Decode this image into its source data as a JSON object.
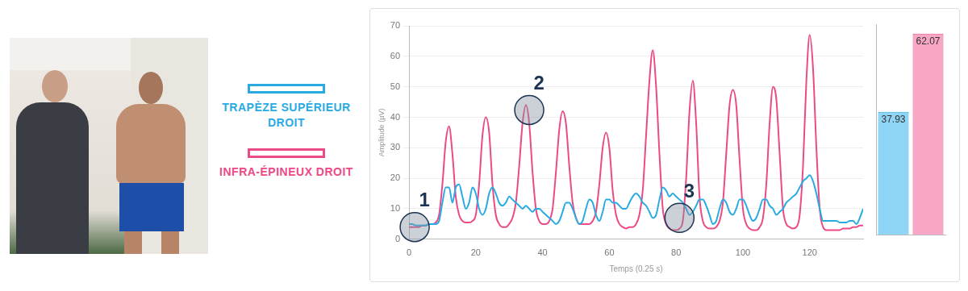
{
  "chart_data": [
    {
      "type": "line",
      "x_label": "Temps (0.25 s)",
      "y_label": "Amplitude (µV)",
      "legend": "left",
      "grid": true,
      "xlim": [
        0,
        136
      ],
      "xticks": [
        0,
        20,
        40,
        60,
        80,
        100,
        120
      ],
      "ylim": [
        0,
        70
      ],
      "yticks": [
        0,
        10,
        20,
        30,
        40,
        50,
        60,
        70
      ],
      "x": [
        0,
        1,
        2,
        3,
        4,
        5,
        6,
        7,
        8,
        9,
        10,
        11,
        12,
        13,
        14,
        15,
        16,
        17,
        18,
        19,
        20,
        21,
        22,
        23,
        24,
        25,
        26,
        27,
        28,
        29,
        30,
        31,
        32,
        33,
        34,
        35,
        36,
        37,
        38,
        39,
        40,
        41,
        42,
        43,
        44,
        45,
        46,
        47,
        48,
        49,
        50,
        51,
        52,
        53,
        54,
        55,
        56,
        57,
        58,
        59,
        60,
        61,
        62,
        63,
        64,
        65,
        66,
        67,
        68,
        69,
        70,
        71,
        72,
        73,
        74,
        75,
        76,
        77,
        78,
        79,
        80,
        81,
        82,
        83,
        84,
        85,
        86,
        87,
        88,
        89,
        90,
        91,
        92,
        93,
        94,
        95,
        96,
        97,
        98,
        99,
        100,
        101,
        102,
        103,
        104,
        105,
        106,
        107,
        108,
        109,
        110,
        111,
        112,
        113,
        114,
        115,
        116,
        117,
        118,
        119,
        120,
        121,
        122,
        123,
        124,
        125,
        126,
        127,
        128,
        129,
        130,
        131,
        132,
        133,
        134,
        135,
        136
      ],
      "series": [
        {
          "name": "TRAPÈZE SUPÉRIEUR DROIT",
          "color": "#29abe2",
          "values": [
            5,
            5,
            4.5,
            4.5,
            4.5,
            4.5,
            5,
            5,
            5,
            6,
            12,
            17,
            17,
            12,
            17,
            18,
            14,
            10,
            12,
            17,
            15,
            10,
            8,
            10,
            15,
            17,
            15,
            12,
            11,
            12,
            14,
            13,
            12,
            11,
            10,
            11,
            10,
            9,
            10,
            10,
            9,
            8,
            7,
            6,
            5,
            6,
            9,
            12,
            12,
            10,
            7,
            5,
            6,
            10,
            13,
            12,
            8,
            6,
            9,
            13,
            13,
            12,
            12,
            11,
            10,
            10,
            12,
            14,
            15,
            14,
            12,
            11,
            9,
            7,
            8,
            13,
            17,
            16,
            14,
            15,
            14,
            13,
            12,
            10,
            8,
            9,
            11,
            13,
            13,
            11,
            8,
            5,
            6,
            10,
            13,
            12,
            9,
            8,
            10,
            13,
            13,
            11,
            8,
            6,
            7,
            10,
            13,
            13,
            11,
            10,
            8,
            9,
            10,
            12,
            13,
            14,
            15,
            17,
            19,
            20,
            21,
            19,
            15,
            10,
            6,
            6,
            6,
            6,
            6,
            5.5,
            5.5,
            5.5,
            6,
            6,
            5,
            7,
            10
          ]
        },
        {
          "name": "INFRA-ÉPINEUX DROIT",
          "color": "#ec4a87",
          "values": [
            4,
            4,
            4,
            4,
            4.5,
            4.5,
            5,
            5,
            5.5,
            8,
            18,
            32,
            37,
            28,
            14,
            8,
            6,
            5.5,
            5.5,
            6,
            8,
            18,
            34,
            40,
            35,
            18,
            8,
            5,
            4,
            4,
            5,
            7,
            12,
            24,
            38,
            44,
            38,
            22,
            10,
            6,
            5,
            5,
            6,
            10,
            22,
            36,
            42,
            38,
            24,
            12,
            7,
            5,
            5,
            5,
            5,
            6,
            9,
            18,
            30,
            35,
            30,
            16,
            8,
            5,
            4,
            3.5,
            4,
            4,
            5,
            8,
            16,
            34,
            52,
            62,
            50,
            28,
            10,
            5,
            3.5,
            3,
            3,
            3.5,
            6,
            20,
            42,
            52,
            38,
            14,
            6,
            4,
            3.5,
            3.5,
            4,
            6,
            12,
            28,
            44,
            49,
            44,
            26,
            10,
            5,
            3.5,
            3,
            3,
            4,
            7,
            18,
            38,
            50,
            46,
            28,
            10,
            5,
            4,
            3.5,
            4,
            8,
            24,
            52,
            67,
            56,
            30,
            10,
            4,
            3,
            3,
            3,
            3,
            3,
            3.5,
            3.5,
            3.5,
            4,
            4,
            4.5,
            4.5
          ]
        }
      ],
      "annotations": [
        {
          "label": "1",
          "x": 1.7,
          "y": 4
        },
        {
          "label": "2",
          "x": 36,
          "y": 42.4
        },
        {
          "label": "3",
          "x": 81,
          "y": 7
        }
      ]
    },
    {
      "type": "bar",
      "categories": [
        null,
        null
      ],
      "values": [
        37.93,
        62.07
      ],
      "colors": [
        "#8fd5f5",
        "#f7a6c5"
      ],
      "ylim": [
        0,
        65
      ],
      "data_labels": true,
      "tick_labels": false
    }
  ]
}
